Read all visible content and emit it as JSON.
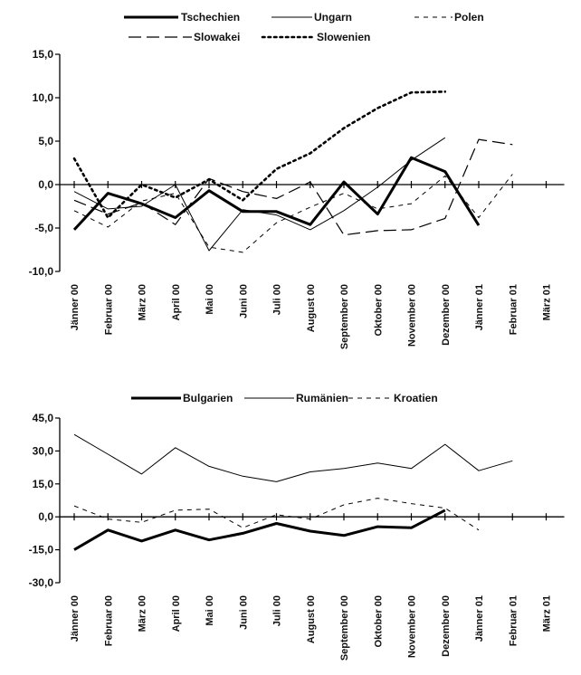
{
  "chart_data": [
    {
      "type": "line",
      "categories": [
        "Jänner 00",
        "Februar 00",
        "März 00",
        "April 00",
        "Mai 00",
        "Juni 00",
        "Juli 00",
        "August 00",
        "September 00",
        "Oktober 00",
        "November 00",
        "Dezember 00",
        "Jänner 01",
        "Februar 01",
        "März 01"
      ],
      "ylim": [
        -10,
        15
      ],
      "yticks": [
        "-10,0",
        "-5,0",
        "0,0",
        "5,0",
        "10,0",
        "15,0"
      ],
      "legend_position": "top",
      "series": [
        {
          "name": "Tschechien",
          "style": "thick",
          "values": [
            -5.2,
            -1.0,
            -2.2,
            -3.8,
            -0.7,
            -3.1,
            -3.1,
            -4.6,
            0.3,
            -3.4,
            3.1,
            1.5,
            -4.7,
            null,
            null
          ]
        },
        {
          "name": "Ungarn",
          "style": "thin",
          "values": [
            -0.8,
            -2.8,
            -2.5,
            0.0,
            -7.6,
            -2.9,
            -3.5,
            -5.2,
            -3.0,
            -0.3,
            2.8,
            5.4,
            null,
            null,
            null
          ]
        },
        {
          "name": "Polen",
          "style": "dash",
          "values": [
            -3.0,
            -4.9,
            -1.9,
            -1.0,
            -7.2,
            -7.8,
            -4.4,
            -2.6,
            -1.0,
            -2.8,
            -2.2,
            1.0,
            -3.8,
            1.2,
            null
          ]
        },
        {
          "name": "Slowakei",
          "style": "longdash",
          "values": [
            -1.8,
            -3.4,
            -2.1,
            -4.6,
            0.7,
            -0.8,
            -1.6,
            0.3,
            -5.8,
            -5.3,
            -5.2,
            -3.9,
            5.2,
            4.6,
            null
          ]
        },
        {
          "name": "Slowenien",
          "style": "dot",
          "values": [
            3.0,
            -3.8,
            0.0,
            -1.5,
            0.6,
            -1.8,
            1.8,
            3.6,
            6.5,
            8.8,
            10.6,
            10.7,
            null,
            null,
            null
          ]
        }
      ]
    },
    {
      "type": "line",
      "categories": [
        "Jänner 00",
        "Februar 00",
        "März 00",
        "April 00",
        "Mai 00",
        "Juni 00",
        "Juli 00",
        "August 00",
        "September 00",
        "Oktober 00",
        "November 00",
        "Dezember 00",
        "Jänner 01",
        "Februar 01",
        "März 01"
      ],
      "ylim": [
        -30,
        45
      ],
      "yticks": [
        "-30,0",
        "-15,0",
        "0,0",
        "15,0",
        "30,0",
        "45,0"
      ],
      "legend_position": "top",
      "series": [
        {
          "name": "Bulgarien",
          "style": "thick",
          "values": [
            -15.0,
            -6.0,
            -11.0,
            -6.0,
            -10.5,
            -7.5,
            -3.0,
            -6.5,
            -8.5,
            -4.5,
            -5.0,
            3.0,
            null,
            null,
            null
          ]
        },
        {
          "name": "Rumänien",
          "style": "thin",
          "values": [
            37.5,
            28.5,
            19.5,
            31.5,
            23.0,
            18.5,
            16.0,
            20.5,
            22.0,
            24.5,
            22.0,
            33.0,
            21.0,
            25.5,
            null
          ]
        },
        {
          "name": "Kroatien",
          "style": "dash",
          "values": [
            5.0,
            -1.0,
            -2.5,
            3.0,
            3.5,
            -5.0,
            1.0,
            -1.0,
            5.5,
            8.5,
            6.0,
            4.0,
            -6.0,
            null,
            null
          ]
        }
      ]
    }
  ]
}
